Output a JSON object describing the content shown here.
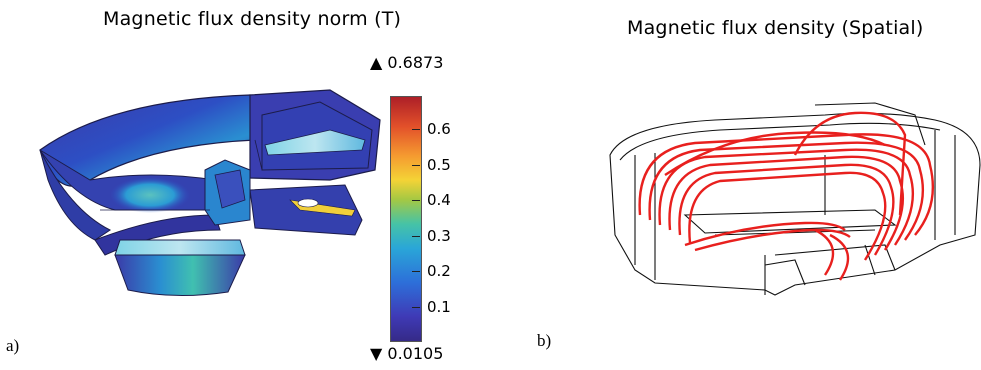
{
  "panel_a": {
    "title": "Magnetic flux density norm (T)",
    "label": "a)",
    "colorbar": {
      "max_label": "▲ 0.6873",
      "min_label": "▼ 0.0105",
      "ticks": [
        "0.6",
        "0.5",
        "0.4",
        "0.3",
        "0.2",
        "0.1"
      ],
      "colormap": [
        "#352a87",
        "#2d6fd9",
        "#2aa6d8",
        "#46c3a6",
        "#a5c843",
        "#f4d336",
        "#f59a30",
        "#e2502a",
        "#ad1f27"
      ]
    }
  },
  "panel_b": {
    "title": "Magnetic flux density (Spatial)",
    "label": "b)",
    "streamline_color": "#e8201e"
  }
}
